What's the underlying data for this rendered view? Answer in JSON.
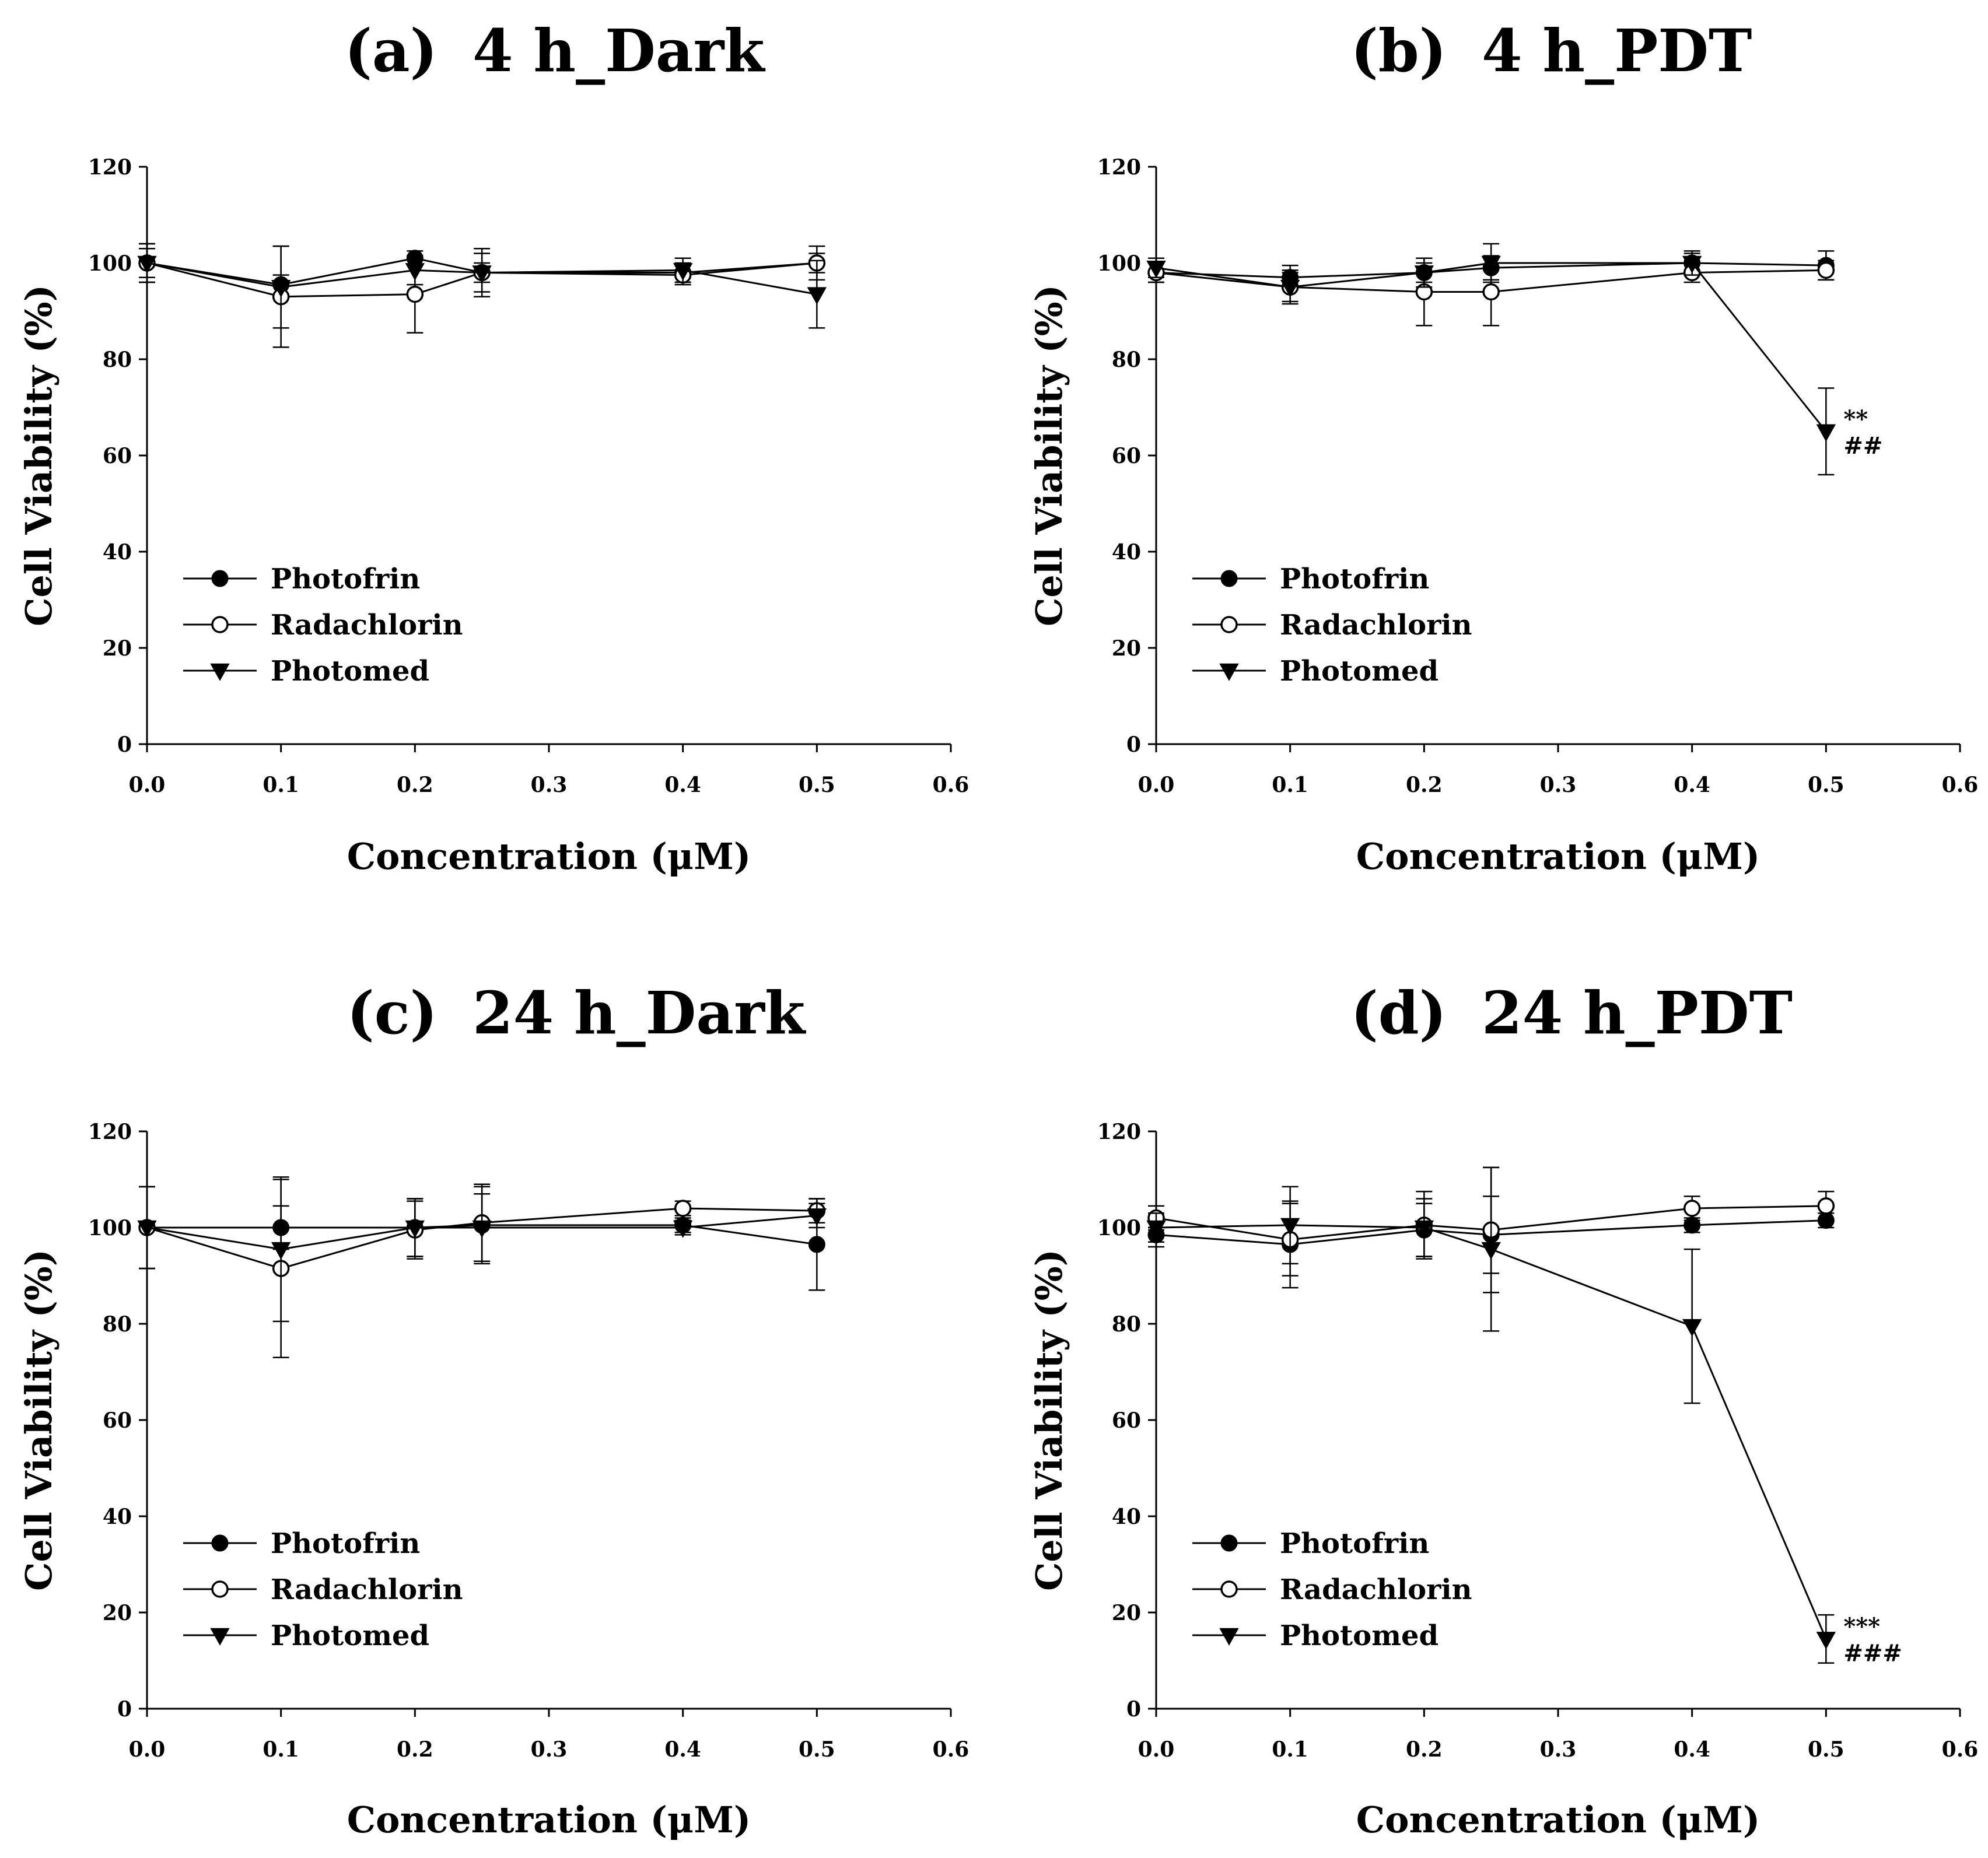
{
  "chart_data": [
    {
      "type": "line",
      "panel_label": "(a)",
      "title": "4 h_Dark",
      "xlabel": "Concentration (μM)",
      "ylabel": "Cell Viability (%)",
      "xlim": [
        0,
        0.6
      ],
      "ylim": [
        0,
        120
      ],
      "xticks": [
        "0.0",
        "0.1",
        "0.2",
        "0.3",
        "0.4",
        "0.5",
        "0.6"
      ],
      "yticks": [
        "0",
        "20",
        "40",
        "60",
        "80",
        "100",
        "120"
      ],
      "x": [
        0,
        0.1,
        0.2,
        0.25,
        0.4,
        0.5
      ],
      "series": [
        {
          "name": "Photofrin",
          "marker": "filled-circle",
          "values": [
            100,
            95.5,
            101,
            98,
            98,
            100
          ],
          "errors": [
            4,
            2,
            1.5,
            2,
            2,
            2
          ]
        },
        {
          "name": "Radachlorin",
          "marker": "open-circle",
          "values": [
            100,
            93,
            93.5,
            98,
            97.5,
            100
          ],
          "errors": [
            4,
            10.5,
            8,
            4,
            2,
            3.5
          ]
        },
        {
          "name": "Photomed",
          "marker": "filled-triangle-down",
          "values": [
            100,
            95,
            98.5,
            98,
            98.5,
            93.5
          ],
          "errors": [
            3,
            8.5,
            3,
            5,
            2.5,
            7
          ]
        }
      ],
      "annotations": []
    },
    {
      "type": "line",
      "panel_label": "(b)",
      "title": "4 h_PDT",
      "xlabel": "Concentration (μM)",
      "ylabel": "Cell Viability (%)",
      "xlim": [
        0,
        0.6
      ],
      "ylim": [
        0,
        120
      ],
      "xticks": [
        "0.0",
        "0.1",
        "0.2",
        "0.3",
        "0.4",
        "0.5",
        "0.6"
      ],
      "yticks": [
        "0",
        "20",
        "40",
        "60",
        "80",
        "100",
        "120"
      ],
      "x": [
        0,
        0.1,
        0.2,
        0.25,
        0.4,
        0.5
      ],
      "series": [
        {
          "name": "Photofrin",
          "marker": "filled-circle",
          "values": [
            98,
            97,
            98,
            99,
            100,
            99.5
          ],
          "errors": [
            2,
            2.5,
            2,
            2.5,
            2,
            3
          ]
        },
        {
          "name": "Radachlorin",
          "marker": "open-circle",
          "values": [
            98,
            95,
            94,
            94,
            98,
            98.5
          ],
          "errors": [
            2,
            3.5,
            7,
            7,
            2,
            2
          ]
        },
        {
          "name": "Photomed",
          "marker": "filled-triangle-down",
          "values": [
            99,
            95,
            98,
            100,
            100,
            65
          ],
          "errors": [
            2,
            3,
            3,
            4,
            2.5,
            9
          ]
        }
      ],
      "annotations": [
        {
          "x": 0.5,
          "y": 65,
          "line1": "**",
          "line2": "##"
        }
      ]
    },
    {
      "type": "line",
      "panel_label": "(c)",
      "title": "24 h_Dark",
      "xlabel": "Concentration (μM)",
      "ylabel": "Cell Viability (%)",
      "xlim": [
        0,
        0.6
      ],
      "ylim": [
        0,
        120
      ],
      "xticks": [
        "0.0",
        "0.1",
        "0.2",
        "0.3",
        "0.4",
        "0.5",
        "0.6"
      ],
      "yticks": [
        "0",
        "20",
        "40",
        "60",
        "80",
        "100",
        "120"
      ],
      "x": [
        0,
        0.1,
        0.2,
        0.25,
        0.4,
        0.5
      ],
      "series": [
        {
          "name": "Photofrin",
          "marker": "filled-circle",
          "values": [
            100,
            100,
            100,
            100.5,
            100.5,
            96.5
          ],
          "errors": [
            8.5,
            4.5,
            6,
            8,
            1.5,
            9.5
          ]
        },
        {
          "name": "Radachlorin",
          "marker": "open-circle",
          "values": [
            100,
            91.5,
            99.5,
            101,
            104,
            103.5
          ],
          "errors": [
            8.5,
            18.5,
            6,
            8,
            1.5,
            2.5
          ]
        },
        {
          "name": "Photomed",
          "marker": "filled-triangle-down",
          "values": [
            100,
            95.5,
            100,
            100,
            100,
            102.5
          ],
          "errors": [
            8.5,
            15,
            6,
            7,
            1.5,
            2.5
          ]
        }
      ],
      "annotations": []
    },
    {
      "type": "line",
      "panel_label": "(d)",
      "title": "24 h_PDT",
      "xlabel": "Concentration (μM)",
      "ylabel": "Cell Viability (%)",
      "xlim": [
        0,
        0.6
      ],
      "ylim": [
        0,
        120
      ],
      "xticks": [
        "0.0",
        "0.1",
        "0.2",
        "0.3",
        "0.4",
        "0.5",
        "0.6"
      ],
      "yticks": [
        "0",
        "20",
        "40",
        "60",
        "80",
        "100",
        "120"
      ],
      "x": [
        0,
        0.1,
        0.2,
        0.25,
        0.4,
        0.5
      ],
      "series": [
        {
          "name": "Photofrin",
          "marker": "filled-circle",
          "values": [
            98.5,
            96.5,
            99.5,
            98.5,
            100.5,
            101.5
          ],
          "errors": [
            2.5,
            9,
            5.5,
            8,
            1.5,
            1.5
          ]
        },
        {
          "name": "Radachlorin",
          "marker": "open-circle",
          "values": [
            102,
            97.5,
            100.5,
            99.5,
            104,
            104.5
          ],
          "errors": [
            2.5,
            7.5,
            7,
            13,
            2.5,
            3
          ]
        },
        {
          "name": "Photomed",
          "marker": "filled-triangle-down",
          "values": [
            100,
            100.5,
            100,
            95.5,
            79.5,
            14.5
          ],
          "errors": [
            3,
            8,
            6,
            17,
            16,
            5
          ]
        }
      ],
      "annotations": [
        {
          "x": 0.5,
          "y": 14.5,
          "line1": "***",
          "line2": "###"
        }
      ]
    }
  ]
}
